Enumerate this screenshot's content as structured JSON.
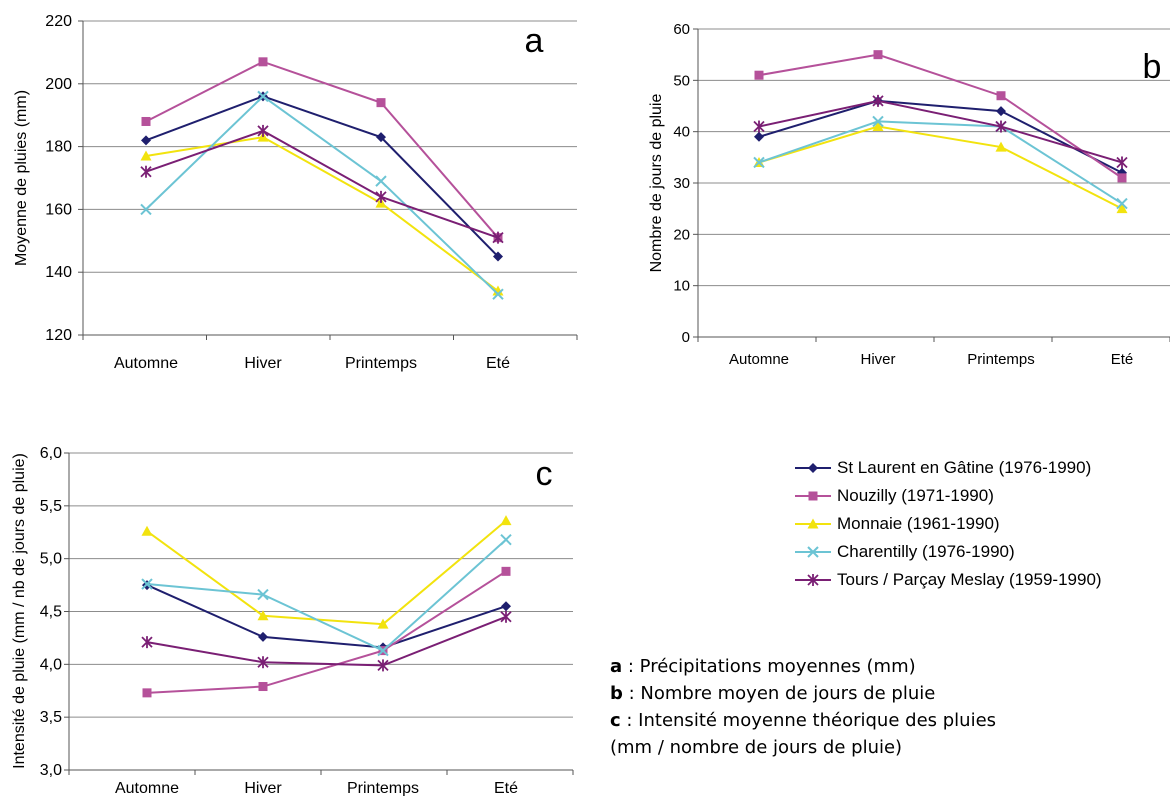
{
  "colors": {
    "St Laurent": "#1f1f6e",
    "Nouzilly": "#b5519a",
    "Monnaie": "#f2e30e",
    "Charentilly": "#6cc4d4",
    "Tours": "#7a1f74"
  },
  "chart_data": [
    {
      "panel": "a",
      "type": "line",
      "categories": [
        "Automne",
        "Hiver",
        "Printemps",
        "Eté"
      ],
      "ylabel": "Moyenne de pluies (mm)",
      "ylim": [
        120,
        220
      ],
      "yticks": [
        "120",
        "140",
        "160",
        "180",
        "200",
        "220"
      ],
      "ytick_values": [
        120,
        140,
        160,
        180,
        200,
        220
      ],
      "grid": true,
      "series": [
        {
          "name": "St Laurent en Gâtine (1976-1990)",
          "marker": "diamond",
          "values": [
            182,
            196,
            183,
            145
          ]
        },
        {
          "name": "Nouzilly (1971-1990)",
          "marker": "square",
          "values": [
            188,
            207,
            194,
            151
          ]
        },
        {
          "name": "Monnaie (1961-1990)",
          "marker": "triangle",
          "values": [
            177,
            183,
            162,
            134
          ]
        },
        {
          "name": "Charentilly (1976-1990)",
          "marker": "x",
          "values": [
            160,
            196,
            169,
            133
          ]
        },
        {
          "name": "Tours / Parçay Meslay (1959-1990)",
          "marker": "star",
          "values": [
            172,
            185,
            164,
            151
          ]
        }
      ]
    },
    {
      "panel": "b",
      "type": "line",
      "categories": [
        "Automne",
        "Hiver",
        "Printemps",
        "Eté"
      ],
      "ylabel": "Nombre de jours de pluie",
      "ylim": [
        0,
        60
      ],
      "yticks": [
        "0",
        "10",
        "20",
        "30",
        "40",
        "50",
        "60"
      ],
      "ytick_values": [
        0,
        10,
        20,
        30,
        40,
        50,
        60
      ],
      "grid": true,
      "series": [
        {
          "name": "St Laurent en Gâtine (1976-1990)",
          "marker": "diamond",
          "values": [
            39,
            46,
            44,
            32
          ]
        },
        {
          "name": "Nouzilly (1971-1990)",
          "marker": "square",
          "values": [
            51,
            55,
            47,
            31
          ]
        },
        {
          "name": "Monnaie (1961-1990)",
          "marker": "triangle",
          "values": [
            34,
            41,
            37,
            25
          ]
        },
        {
          "name": "Charentilly (1976-1990)",
          "marker": "x",
          "values": [
            34,
            42,
            41,
            26
          ]
        },
        {
          "name": "Tours / Parçay Meslay (1959-1990)",
          "marker": "star",
          "values": [
            41,
            46,
            41,
            34
          ]
        }
      ]
    },
    {
      "panel": "c",
      "type": "line",
      "categories": [
        "Automne",
        "Hiver",
        "Printemps",
        "Eté"
      ],
      "ylabel": "Intensité de pluie (mm / nb de jours de pluie)",
      "ylim": [
        3.0,
        6.0
      ],
      "yticks": [
        "3,0",
        "3,5",
        "4,0",
        "4,5",
        "5,0",
        "5,5",
        "6,0"
      ],
      "ytick_values": [
        3.0,
        3.5,
        4.0,
        4.5,
        5.0,
        5.5,
        6.0
      ],
      "grid": true,
      "series": [
        {
          "name": "St Laurent en Gâtine (1976-1990)",
          "marker": "diamond",
          "values": [
            4.75,
            4.26,
            4.16,
            4.55
          ]
        },
        {
          "name": "Nouzilly (1971-1990)",
          "marker": "square",
          "values": [
            3.73,
            3.79,
            4.13,
            4.88
          ]
        },
        {
          "name": "Monnaie (1961-1990)",
          "marker": "triangle",
          "values": [
            5.26,
            4.46,
            4.38,
            5.36
          ]
        },
        {
          "name": "Charentilly (1976-1990)",
          "marker": "x",
          "values": [
            4.76,
            4.66,
            4.13,
            5.18
          ]
        },
        {
          "name": "Tours / Parçay Meslay (1959-1990)",
          "marker": "star",
          "values": [
            4.21,
            4.02,
            3.99,
            4.45
          ]
        }
      ]
    }
  ],
  "legend": [
    {
      "label": "St Laurent en Gâtine (1976-1990)",
      "color": "#1f1f6e",
      "marker": "diamond"
    },
    {
      "label": "Nouzilly (1971-1990)",
      "color": "#b5519a",
      "marker": "square"
    },
    {
      "label": "Monnaie (1961-1990)",
      "color": "#f2e30e",
      "marker": "triangle"
    },
    {
      "label": "Charentilly (1976-1990)",
      "color": "#6cc4d4",
      "marker": "x"
    },
    {
      "label": "Tours / Parçay Meslay (1959-1990)",
      "color": "#7a1f74",
      "marker": "star"
    }
  ],
  "notes": {
    "a_key": "a",
    "a_text": " : Précipitations moyennes (mm)",
    "b_key": "b",
    "b_text": " : Nombre moyen de jours de pluie",
    "c_key": "c",
    "c_text": " : Intensité moyenne théorique des pluies",
    "c_text2": "(mm / nombre de jours de pluie)"
  }
}
